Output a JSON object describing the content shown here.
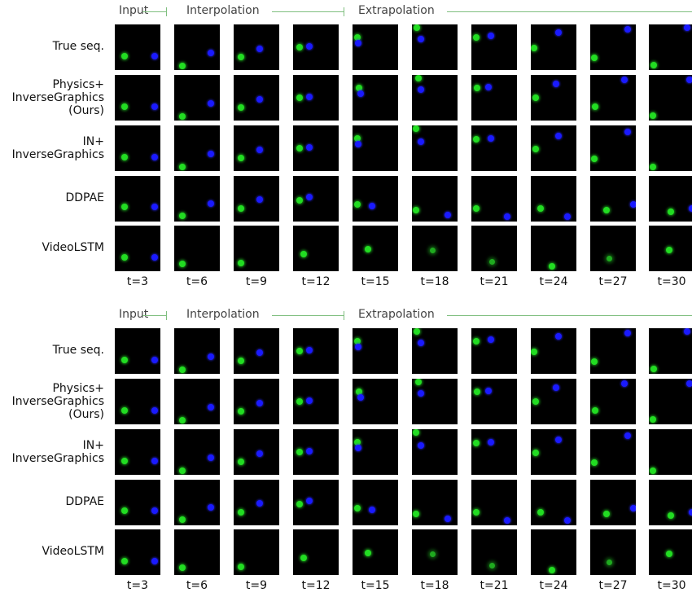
{
  "figure": {
    "phases": [
      {
        "id": "input",
        "label": "Input"
      },
      {
        "id": "interpolation",
        "label": "Interpolation"
      },
      {
        "id": "extrapolation",
        "label": "Extrapolation"
      }
    ],
    "time_labels": [
      "t=3",
      "t=6",
      "t=9",
      "t=12",
      "t=15",
      "t=18",
      "t=21",
      "t=24",
      "t=27",
      "t=30"
    ],
    "row_labels": [
      [
        "True seq."
      ],
      [
        "Physics+",
        "InverseGraphics",
        "(Ours)"
      ],
      [
        "IN+",
        "InverseGraphics"
      ],
      [
        "DDPAE"
      ],
      [
        "VideoLSTM"
      ]
    ],
    "colors": {
      "green_ball": "#22dd22",
      "blue_ball": "#1a1aff",
      "frame_bg": "#000000",
      "phase_line": "#7fbf7f"
    }
  }
}
